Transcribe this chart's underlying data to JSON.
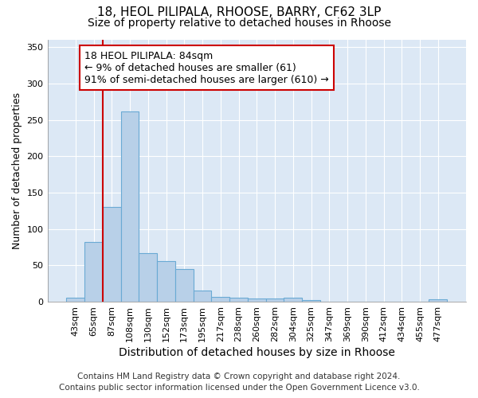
{
  "title_line1": "18, HEOL PILIPALA, RHOOSE, BARRY, CF62 3LP",
  "title_line2": "Size of property relative to detached houses in Rhoose",
  "xlabel": "Distribution of detached houses by size in Rhoose",
  "ylabel": "Number of detached properties",
  "footer_line1": "Contains HM Land Registry data © Crown copyright and database right 2024.",
  "footer_line2": "Contains public sector information licensed under the Open Government Licence v3.0.",
  "annotation_line1": "18 HEOL PILIPALA: 84sqm",
  "annotation_line2": "← 9% of detached houses are smaller (61)",
  "annotation_line3": "91% of semi-detached houses are larger (610) →",
  "bar_categories": [
    "43sqm",
    "65sqm",
    "87sqm",
    "108sqm",
    "130sqm",
    "152sqm",
    "173sqm",
    "195sqm",
    "217sqm",
    "238sqm",
    "260sqm",
    "282sqm",
    "304sqm",
    "325sqm",
    "347sqm",
    "369sqm",
    "390sqm",
    "412sqm",
    "434sqm",
    "455sqm",
    "477sqm"
  ],
  "bar_values": [
    5,
    82,
    130,
    261,
    67,
    56,
    45,
    15,
    7,
    5,
    4,
    4,
    5,
    2,
    0,
    0,
    0,
    0,
    0,
    0,
    3
  ],
  "bar_color": "#b8d0e8",
  "bar_edge_color": "#6aaad4",
  "vline_color": "#cc0000",
  "vline_x_index": 2,
  "annotation_box_edgecolor": "#cc0000",
  "ylim": [
    0,
    360
  ],
  "yticks": [
    0,
    50,
    100,
    150,
    200,
    250,
    300,
    350
  ],
  "fig_bg_color": "#ffffff",
  "plot_bg_color": "#dce8f5",
  "grid_color": "#ffffff",
  "title1_fontsize": 11,
  "title2_fontsize": 10,
  "xlabel_fontsize": 10,
  "ylabel_fontsize": 9,
  "tick_fontsize": 8,
  "annotation_fontsize": 9,
  "footer_fontsize": 7.5
}
